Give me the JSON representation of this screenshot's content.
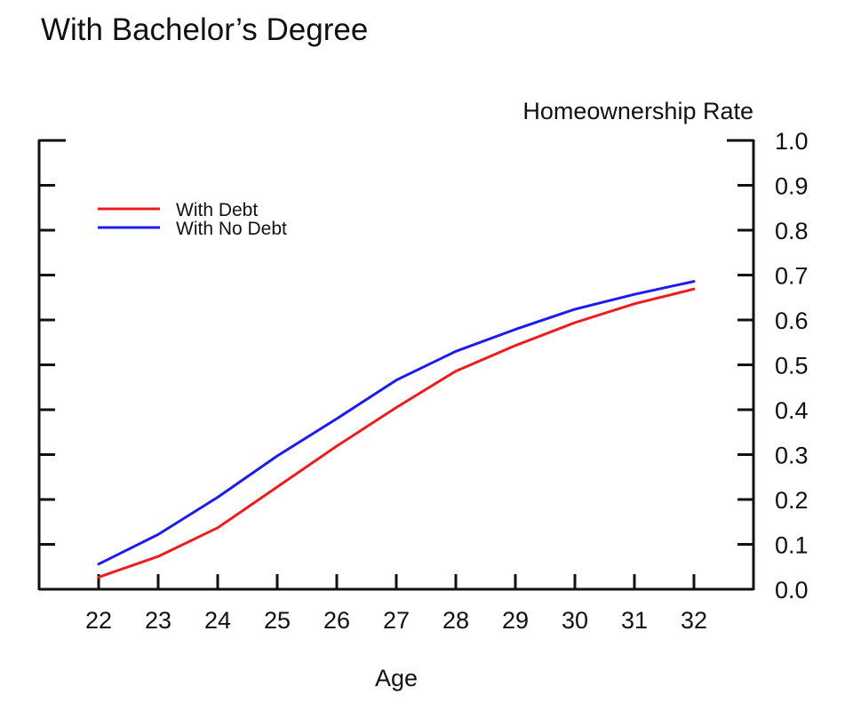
{
  "chart_data": {
    "type": "line",
    "title": "With Bachelor’s Degree",
    "xlabel": "Age",
    "ylabel": "Homeownership Rate",
    "x": [
      22,
      23,
      24,
      25,
      26,
      27,
      28,
      29,
      30,
      31,
      32
    ],
    "xlim": [
      21,
      33
    ],
    "ylim": [
      0,
      1.0
    ],
    "yticks": [
      "0.0",
      "0.1",
      "0.2",
      "0.3",
      "0.4",
      "0.5",
      "0.6",
      "0.7",
      "0.8",
      "0.9",
      "1.0"
    ],
    "y_axis_side": "right",
    "grid": false,
    "legend_position": "top-left",
    "series": [
      {
        "name": "With Debt",
        "color": "#ee1c1c",
        "values": [
          0.027,
          0.073,
          0.137,
          0.228,
          0.319,
          0.405,
          0.486,
          0.543,
          0.594,
          0.636,
          0.669
        ]
      },
      {
        "name": "With No Debt",
        "color": "#1c1cee",
        "values": [
          0.056,
          0.122,
          0.205,
          0.297,
          0.38,
          0.466,
          0.53,
          0.579,
          0.624,
          0.657,
          0.686
        ]
      }
    ]
  }
}
